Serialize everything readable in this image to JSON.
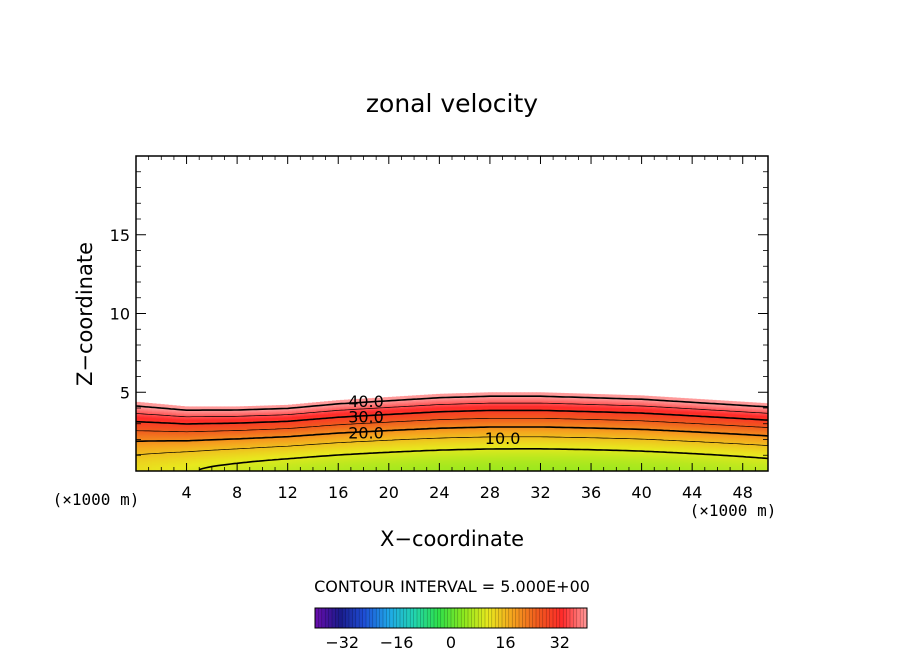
{
  "chart_data": {
    "type": "heatmap",
    "subtype": "filled-contour",
    "title": "zonal velocity",
    "xlabel": "X−coordinate",
    "ylabel": "Z−coordinate",
    "x_unit_left": "(×1000 m)",
    "x_unit_right": "(×1000 m)",
    "xlim": [
      0,
      50
    ],
    "ylim": [
      0,
      20
    ],
    "x_ticks": [
      4,
      8,
      12,
      16,
      20,
      24,
      28,
      32,
      36,
      40,
      44,
      48
    ],
    "x_tick_labels": [
      "4",
      "8",
      "12",
      "16",
      "20",
      "24",
      "28",
      "32",
      "36",
      "40",
      "44",
      "48"
    ],
    "y_ticks": [
      5,
      10,
      15
    ],
    "y_tick_labels": [
      "5",
      "10",
      "15"
    ],
    "contour_interval_text": "CONTOUR INTERVAL = 5.000E+00",
    "contour_interval": 5,
    "contour_labels": [
      "40.0",
      "30.0",
      "20.0",
      "10.0"
    ],
    "contour_label_values": [
      40,
      30,
      20,
      10
    ],
    "field_description": {
      "max_top_value": 40,
      "min_value": 5,
      "x_profile": [
        0,
        4,
        8,
        12,
        16,
        20,
        24,
        28,
        32,
        36,
        40,
        44,
        48,
        50
      ],
      "top_z_of_40_contour": [
        4.4,
        4.1,
        4.1,
        4.2,
        4.5,
        4.7,
        4.9,
        5.0,
        5.0,
        4.9,
        4.8,
        4.6,
        4.4,
        4.3
      ]
    },
    "colorbar": {
      "vmin": -40,
      "vmax": 40,
      "tick_values": [
        -32,
        -16,
        0,
        16,
        32
      ],
      "tick_labels": [
        "−32",
        "−16",
        "0",
        "16",
        "32"
      ],
      "colors": [
        "#6a0dad",
        "#1a1a8a",
        "#1e4fd6",
        "#1fa8e8",
        "#22d4b0",
        "#2ee04a",
        "#8be81e",
        "#e8e81e",
        "#f5a21e",
        "#f05a1e",
        "#ff2a2a",
        "#ff9a9a"
      ]
    }
  }
}
